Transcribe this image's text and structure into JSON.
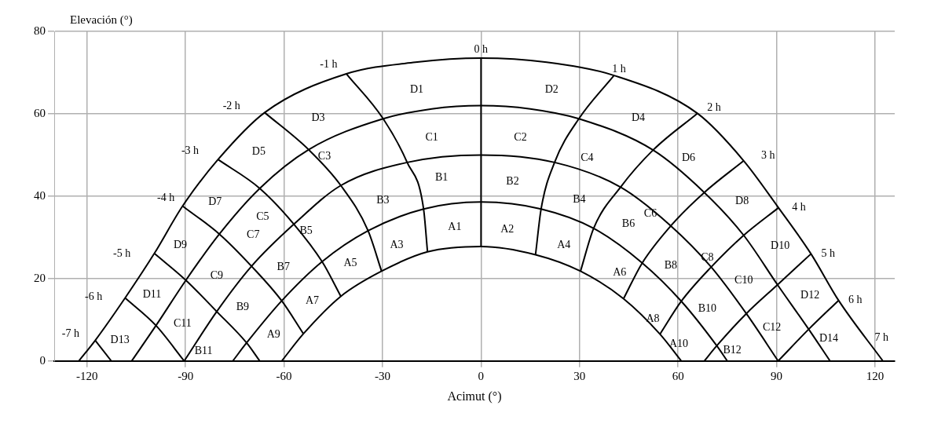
{
  "chart_data": {
    "type": "line",
    "xlabel": "Acimut (°)",
    "ylabel": "Elevación (°)",
    "xlim": [
      -130,
      126
    ],
    "xticks": [
      -120,
      -90,
      -60,
      -30,
      0,
      30,
      60,
      90,
      120
    ],
    "ylim": [
      0,
      80
    ],
    "yticks": [
      0,
      20,
      40,
      60,
      80
    ],
    "grid": true,
    "legend": false,
    "marker": "none",
    "series": [
      {
        "color": "#000000",
        "x": [
          -122.5,
          -117.5,
          -108.4,
          -99.5,
          -90.9,
          -80.1,
          -65.9,
          -41,
          -20,
          0,
          20,
          40.5,
          65.9,
          80,
          90.6,
          100.5,
          108.9,
          122.4
        ],
        "values": [
          0,
          5,
          15.3,
          26.1,
          37.6,
          48.9,
          60.3,
          69.7,
          72.5,
          73.5,
          72.5,
          69.3,
          60.1,
          48.6,
          37.2,
          26,
          14.7,
          0
        ]
      },
      {
        "color": "#000000",
        "x": [
          -106.4,
          -99,
          -89.9,
          -79.7,
          -67.4,
          -52.5,
          -29.8,
          -15,
          0,
          15,
          29.8,
          52.4,
          68,
          80,
          90.3,
          99.8,
          106.3
        ],
        "values": [
          0,
          8.6,
          19.6,
          30.8,
          41.9,
          51.3,
          58.8,
          61.2,
          62,
          61.2,
          58.8,
          51.2,
          40.9,
          30.5,
          18.5,
          7.7,
          0
        ]
      },
      {
        "color": "#000000",
        "x": [
          -90.4,
          -80.5,
          -69.9,
          -57,
          -42.7,
          -22.5,
          0,
          22.4,
          42.5,
          57.8,
          70.1,
          80.8,
          90.5
        ],
        "values": [
          0,
          12,
          23,
          33.2,
          42.6,
          48.2,
          50,
          48.2,
          42.2,
          32.8,
          22.8,
          11.5,
          0
        ]
      },
      {
        "color": "#000000",
        "x": [
          -75.6,
          -71.4,
          -60.7,
          -48.4,
          -34.4,
          -17.5,
          0,
          18.3,
          34.3,
          49.1,
          61,
          71.8,
          75
        ],
        "values": [
          0,
          4.4,
          14.6,
          24.1,
          31.6,
          36.9,
          38.6,
          36.9,
          32.2,
          23.8,
          14.5,
          3.7,
          0
        ]
      },
      {
        "color": "#000000",
        "x": [
          -60.7,
          -54.1,
          -42.7,
          -30.3,
          -16.3,
          0,
          16.6,
          30.3,
          43.4,
          54.5,
          61
        ],
        "values": [
          0,
          6.6,
          15.7,
          21.8,
          26.5,
          27.8,
          25.8,
          21.8,
          15.1,
          6.5,
          0
        ]
      },
      {
        "color": "#000000",
        "x": [
          0,
          0
        ],
        "values": [
          73.5,
          27.8
        ]
      },
      {
        "color": "#000000",
        "x": [
          -41,
          -29.8,
          -22.5,
          -17.5,
          -16.3
        ],
        "values": [
          69.7,
          58.8,
          48.2,
          36.9,
          26.5
        ]
      },
      {
        "color": "#000000",
        "x": [
          40.5,
          29.8,
          22.4,
          18.3,
          16.6
        ],
        "values": [
          69.3,
          58.8,
          48.2,
          36.9,
          25.8
        ]
      },
      {
        "color": "#000000",
        "x": [
          -65.9,
          -52.5,
          -42.7,
          -34.4,
          -30.3
        ],
        "values": [
          60.3,
          51.3,
          42.6,
          31.6,
          21.8
        ]
      },
      {
        "color": "#000000",
        "x": [
          65.9,
          52.4,
          42.5,
          34.3,
          30.3
        ],
        "values": [
          60.1,
          51.2,
          42.2,
          32.2,
          21.8
        ]
      },
      {
        "color": "#000000",
        "x": [
          -80.1,
          -67.4,
          -57,
          -48.4,
          -42.7
        ],
        "values": [
          48.9,
          41.9,
          33.2,
          24.1,
          15.7
        ]
      },
      {
        "color": "#000000",
        "x": [
          80,
          68,
          57.8,
          49.1,
          43.4
        ],
        "values": [
          48.6,
          40.9,
          32.8,
          23.8,
          15.1
        ]
      },
      {
        "color": "#000000",
        "x": [
          -90.9,
          -79.7,
          -69.9,
          -60.7,
          -54.1
        ],
        "values": [
          37.6,
          30.8,
          23,
          14.6,
          6.6
        ]
      },
      {
        "color": "#000000",
        "x": [
          90.6,
          80,
          70.1,
          61,
          54.5
        ],
        "values": [
          37.2,
          30.5,
          22.8,
          14.5,
          6.5
        ]
      },
      {
        "color": "#000000",
        "x": [
          -99.5,
          -89.9,
          -80.5,
          -71.4,
          -67.4
        ],
        "values": [
          26.1,
          19.6,
          12,
          4.4,
          0
        ]
      },
      {
        "color": "#000000",
        "x": [
          100.5,
          90.3,
          80.8,
          71.8,
          68
        ],
        "values": [
          26,
          18.5,
          11.5,
          3.7,
          0
        ]
      },
      {
        "color": "#000000",
        "x": [
          -108.4,
          -99,
          -90.4
        ],
        "values": [
          15.3,
          8.6,
          0
        ]
      },
      {
        "color": "#000000",
        "x": [
          108.9,
          99.8,
          90.5
        ],
        "values": [
          14.7,
          7.7,
          0
        ]
      },
      {
        "color": "#000000",
        "x": [
          -117.5,
          -112.6
        ],
        "values": [
          5,
          0
        ]
      }
    ],
    "annotations": [
      "-7 h",
      "-6 h",
      "-5 h",
      "-4 h",
      "-3 h",
      "-2 h",
      "-1 h",
      "0 h",
      "1 h",
      "2 h",
      "3 h",
      "4 h",
      "5 h",
      "6 h",
      "7 h",
      "D1",
      "D2",
      "D3",
      "D4",
      "D5",
      "D6",
      "D7",
      "D8",
      "D9",
      "D10",
      "D11",
      "D12",
      "D13",
      "D14",
      "C1",
      "C2",
      "C3",
      "C4",
      "C5",
      "C6",
      "C7",
      "C8",
      "C9",
      "C10",
      "C11",
      "C12",
      "B1",
      "B2",
      "B3",
      "B4",
      "B5",
      "B6",
      "B7",
      "B8",
      "B9",
      "B10",
      "B11",
      "B12",
      "A1",
      "A2",
      "A3",
      "A4",
      "A5",
      "A6",
      "A7",
      "A8",
      "A9",
      "A10"
    ]
  }
}
